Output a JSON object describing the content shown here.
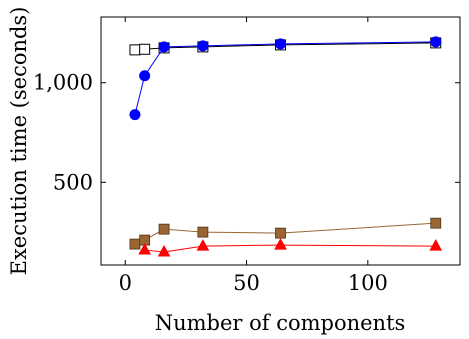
{
  "chart_data": {
    "type": "line",
    "xlabel": "Number of components",
    "ylabel": "Execution time (seconds)",
    "xlim": [
      -10,
      138
    ],
    "ylim": [
      85,
      1330
    ],
    "xticks": [
      0,
      50,
      100
    ],
    "xtick_labels": [
      "0",
      "50",
      "100"
    ],
    "yticks": [
      500,
      1000
    ],
    "ytick_labels": [
      "500",
      "1,000"
    ],
    "grid": false,
    "legend": "none",
    "series": [
      {
        "marker": "square-open",
        "color": "#000000",
        "x": [
          4,
          8,
          16,
          32,
          64,
          128
        ],
        "y": [
          1165,
          1168,
          1175,
          1180,
          1190,
          1200
        ]
      },
      {
        "marker": "circle-filled",
        "color": "#0000ff",
        "x": [
          4,
          8,
          16,
          32,
          64,
          128
        ],
        "y": [
          840,
          1035,
          1180,
          1185,
          1195,
          1205
        ]
      },
      {
        "marker": "square-filled",
        "color": "#996633",
        "x": [
          4,
          8,
          16,
          32,
          64,
          128
        ],
        "y": [
          190,
          210,
          265,
          250,
          245,
          295
        ]
      },
      {
        "marker": "triangle-filled",
        "color": "#ff0000",
        "x": [
          8,
          16,
          32,
          64,
          128
        ],
        "y": [
          160,
          150,
          180,
          185,
          180
        ]
      }
    ]
  }
}
